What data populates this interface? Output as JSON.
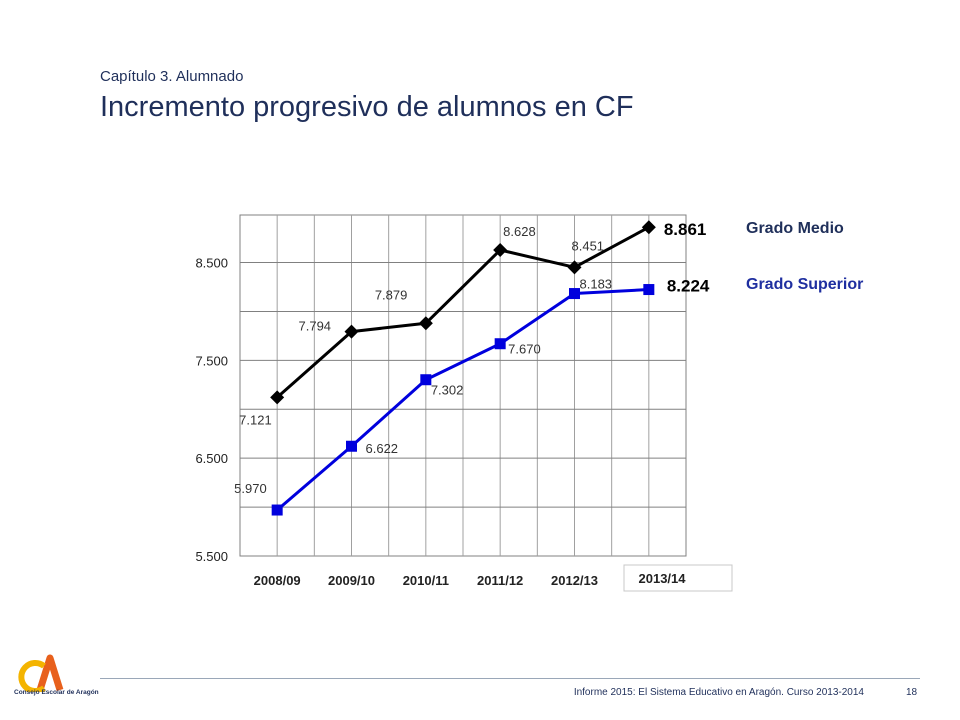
{
  "header": {
    "chapter": "Capítulo 3. Alumnado",
    "title": "Incremento progresivo de alumnos en CF"
  },
  "chart_data": {
    "type": "line",
    "categories": [
      "2008/09",
      "2009/10",
      "2010/11",
      "2011/12",
      "2012/13",
      "2013/14"
    ],
    "series": [
      {
        "name": "Grado Medio",
        "color": "#000000",
        "marker": "diamond",
        "values": [
          7121,
          7794,
          7879,
          8628,
          8451,
          8861
        ],
        "labels": [
          "7.121",
          "7.794",
          "7.879",
          "8.628",
          "8.451",
          "8.861"
        ]
      },
      {
        "name": "Grado Superior",
        "color": "#0000dd",
        "marker": "square",
        "values": [
          5970,
          6622,
          7302,
          7670,
          8183,
          8224
        ],
        "labels": [
          "5.970",
          "6.622",
          "7.302",
          "7.670",
          "8.183",
          "8.224"
        ]
      }
    ],
    "ylim": [
      5500,
      8986
    ],
    "yticks": [
      5500,
      6500,
      7500,
      8500
    ],
    "ytick_labels": [
      "5.500",
      "6.500",
      "7.500",
      "8.500"
    ],
    "grid": true,
    "legend_position": "right"
  },
  "footer": {
    "text": "Informe 2015: El Sistema Educativo en Aragón. Curso 2013-2014",
    "page": "18",
    "logo_text": "Consejo Escolar de Aragón"
  }
}
